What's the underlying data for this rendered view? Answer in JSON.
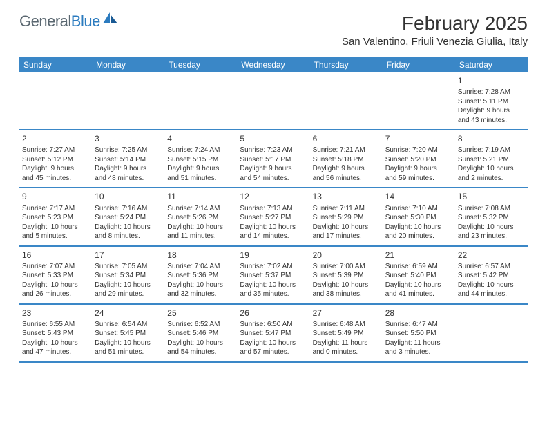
{
  "brand": {
    "part1": "General",
    "part2": "Blue"
  },
  "title": "February 2025",
  "location": "San Valentino, Friuli Venezia Giulia, Italy",
  "colors": {
    "header_bg": "#3a87c7",
    "divider": "#3a87c7",
    "logo_gray": "#5a6770",
    "logo_blue": "#2b7bbf",
    "text": "#333333",
    "page_bg": "#ffffff"
  },
  "daynames": [
    "Sunday",
    "Monday",
    "Tuesday",
    "Wednesday",
    "Thursday",
    "Friday",
    "Saturday"
  ],
  "weeks": [
    [
      null,
      null,
      null,
      null,
      null,
      null,
      {
        "n": "1",
        "sr": "Sunrise: 7:28 AM",
        "ss": "Sunset: 5:11 PM",
        "dl1": "Daylight: 9 hours",
        "dl2": "and 43 minutes."
      }
    ],
    [
      {
        "n": "2",
        "sr": "Sunrise: 7:27 AM",
        "ss": "Sunset: 5:12 PM",
        "dl1": "Daylight: 9 hours",
        "dl2": "and 45 minutes."
      },
      {
        "n": "3",
        "sr": "Sunrise: 7:25 AM",
        "ss": "Sunset: 5:14 PM",
        "dl1": "Daylight: 9 hours",
        "dl2": "and 48 minutes."
      },
      {
        "n": "4",
        "sr": "Sunrise: 7:24 AM",
        "ss": "Sunset: 5:15 PM",
        "dl1": "Daylight: 9 hours",
        "dl2": "and 51 minutes."
      },
      {
        "n": "5",
        "sr": "Sunrise: 7:23 AM",
        "ss": "Sunset: 5:17 PM",
        "dl1": "Daylight: 9 hours",
        "dl2": "and 54 minutes."
      },
      {
        "n": "6",
        "sr": "Sunrise: 7:21 AM",
        "ss": "Sunset: 5:18 PM",
        "dl1": "Daylight: 9 hours",
        "dl2": "and 56 minutes."
      },
      {
        "n": "7",
        "sr": "Sunrise: 7:20 AM",
        "ss": "Sunset: 5:20 PM",
        "dl1": "Daylight: 9 hours",
        "dl2": "and 59 minutes."
      },
      {
        "n": "8",
        "sr": "Sunrise: 7:19 AM",
        "ss": "Sunset: 5:21 PM",
        "dl1": "Daylight: 10 hours",
        "dl2": "and 2 minutes."
      }
    ],
    [
      {
        "n": "9",
        "sr": "Sunrise: 7:17 AM",
        "ss": "Sunset: 5:23 PM",
        "dl1": "Daylight: 10 hours",
        "dl2": "and 5 minutes."
      },
      {
        "n": "10",
        "sr": "Sunrise: 7:16 AM",
        "ss": "Sunset: 5:24 PM",
        "dl1": "Daylight: 10 hours",
        "dl2": "and 8 minutes."
      },
      {
        "n": "11",
        "sr": "Sunrise: 7:14 AM",
        "ss": "Sunset: 5:26 PM",
        "dl1": "Daylight: 10 hours",
        "dl2": "and 11 minutes."
      },
      {
        "n": "12",
        "sr": "Sunrise: 7:13 AM",
        "ss": "Sunset: 5:27 PM",
        "dl1": "Daylight: 10 hours",
        "dl2": "and 14 minutes."
      },
      {
        "n": "13",
        "sr": "Sunrise: 7:11 AM",
        "ss": "Sunset: 5:29 PM",
        "dl1": "Daylight: 10 hours",
        "dl2": "and 17 minutes."
      },
      {
        "n": "14",
        "sr": "Sunrise: 7:10 AM",
        "ss": "Sunset: 5:30 PM",
        "dl1": "Daylight: 10 hours",
        "dl2": "and 20 minutes."
      },
      {
        "n": "15",
        "sr": "Sunrise: 7:08 AM",
        "ss": "Sunset: 5:32 PM",
        "dl1": "Daylight: 10 hours",
        "dl2": "and 23 minutes."
      }
    ],
    [
      {
        "n": "16",
        "sr": "Sunrise: 7:07 AM",
        "ss": "Sunset: 5:33 PM",
        "dl1": "Daylight: 10 hours",
        "dl2": "and 26 minutes."
      },
      {
        "n": "17",
        "sr": "Sunrise: 7:05 AM",
        "ss": "Sunset: 5:34 PM",
        "dl1": "Daylight: 10 hours",
        "dl2": "and 29 minutes."
      },
      {
        "n": "18",
        "sr": "Sunrise: 7:04 AM",
        "ss": "Sunset: 5:36 PM",
        "dl1": "Daylight: 10 hours",
        "dl2": "and 32 minutes."
      },
      {
        "n": "19",
        "sr": "Sunrise: 7:02 AM",
        "ss": "Sunset: 5:37 PM",
        "dl1": "Daylight: 10 hours",
        "dl2": "and 35 minutes."
      },
      {
        "n": "20",
        "sr": "Sunrise: 7:00 AM",
        "ss": "Sunset: 5:39 PM",
        "dl1": "Daylight: 10 hours",
        "dl2": "and 38 minutes."
      },
      {
        "n": "21",
        "sr": "Sunrise: 6:59 AM",
        "ss": "Sunset: 5:40 PM",
        "dl1": "Daylight: 10 hours",
        "dl2": "and 41 minutes."
      },
      {
        "n": "22",
        "sr": "Sunrise: 6:57 AM",
        "ss": "Sunset: 5:42 PM",
        "dl1": "Daylight: 10 hours",
        "dl2": "and 44 minutes."
      }
    ],
    [
      {
        "n": "23",
        "sr": "Sunrise: 6:55 AM",
        "ss": "Sunset: 5:43 PM",
        "dl1": "Daylight: 10 hours",
        "dl2": "and 47 minutes."
      },
      {
        "n": "24",
        "sr": "Sunrise: 6:54 AM",
        "ss": "Sunset: 5:45 PM",
        "dl1": "Daylight: 10 hours",
        "dl2": "and 51 minutes."
      },
      {
        "n": "25",
        "sr": "Sunrise: 6:52 AM",
        "ss": "Sunset: 5:46 PM",
        "dl1": "Daylight: 10 hours",
        "dl2": "and 54 minutes."
      },
      {
        "n": "26",
        "sr": "Sunrise: 6:50 AM",
        "ss": "Sunset: 5:47 PM",
        "dl1": "Daylight: 10 hours",
        "dl2": "and 57 minutes."
      },
      {
        "n": "27",
        "sr": "Sunrise: 6:48 AM",
        "ss": "Sunset: 5:49 PM",
        "dl1": "Daylight: 11 hours",
        "dl2": "and 0 minutes."
      },
      {
        "n": "28",
        "sr": "Sunrise: 6:47 AM",
        "ss": "Sunset: 5:50 PM",
        "dl1": "Daylight: 11 hours",
        "dl2": "and 3 minutes."
      },
      null
    ]
  ]
}
